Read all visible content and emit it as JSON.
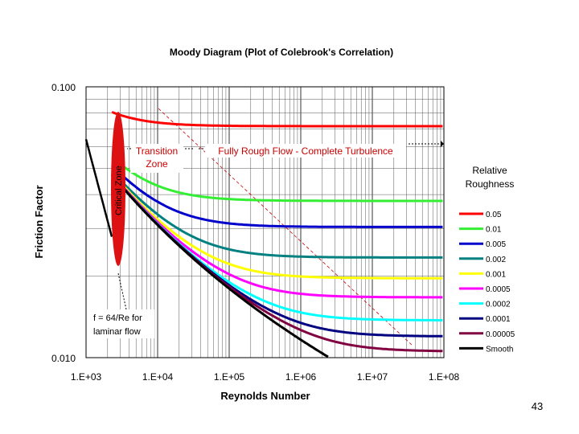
{
  "page_number": "43",
  "chart_data": {
    "type": "line",
    "title": "Moody Diagram (Plot of Colebrook's Correlation)",
    "xlabel": "Reynolds Number",
    "ylabel": "Friction Factor",
    "xscale": "log",
    "yscale": "log",
    "xlim": [
      1000,
      100000000
    ],
    "ylim": [
      0.01,
      0.1
    ],
    "x_tick_labels": [
      "1.E+03",
      "1.E+04",
      "1.E+05",
      "1.E+06",
      "1.E+07",
      "1.E+08"
    ],
    "y_tick_labels": [
      "0.100",
      "0.010"
    ],
    "grid": true,
    "legend_title": "Relative Roughness",
    "legend_placement": "right",
    "series": [
      {
        "name": "0.05",
        "color": "#ff0000"
      },
      {
        "name": "0.01",
        "color": "#33ee33"
      },
      {
        "name": "0.005",
        "color": "#0000cc"
      },
      {
        "name": "0.002",
        "color": "#008080"
      },
      {
        "name": "0.001",
        "color": "#ffff00"
      },
      {
        "name": "0.0005",
        "color": "#ff00ff"
      },
      {
        "name": "0.0002",
        "color": "#00ffff"
      },
      {
        "name": "0.0001",
        "color": "#000080"
      },
      {
        "name": "0.00005",
        "color": "#800040"
      },
      {
        "name": "Smooth",
        "color": "#000000"
      }
    ],
    "laminar": {
      "equation": "f = 64/Re",
      "color": "#000000"
    },
    "annotations": {
      "critical_zone": "Critical Zone",
      "transition_zone_1": "Transition",
      "transition_zone_2": "Zone",
      "fully_rough": "Fully Rough Flow - Complete Turbulence",
      "laminar_1": "f = 64/Re for",
      "laminar_2": "laminar flow"
    }
  }
}
